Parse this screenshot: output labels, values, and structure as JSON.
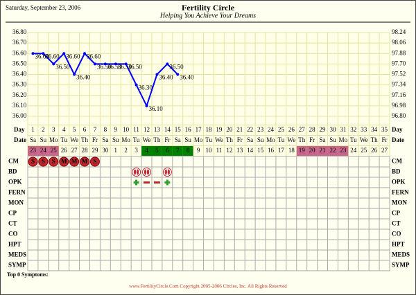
{
  "chart_data": {
    "type": "line",
    "header_date": "Saturday, September 23, 2006",
    "title": "Fertility Circle",
    "subtitle": "Helping You Achieve Your Dreams",
    "ylim": [
      36.0,
      36.8
    ],
    "yticks": [
      {
        "value": 36.8,
        "label": "36.80"
      },
      {
        "value": 36.7,
        "label": "36.70"
      },
      {
        "value": 36.6,
        "label": "36.60"
      },
      {
        "value": 36.5,
        "label": "36.50"
      },
      {
        "value": 36.4,
        "label": "36.40"
      },
      {
        "value": 36.3,
        "label": "36.30"
      },
      {
        "value": 36.2,
        "label": "36.20"
      },
      {
        "value": 36.1,
        "label": "36.10"
      },
      {
        "value": 36.0,
        "label": "36.00"
      }
    ],
    "y2lim": [
      96.8,
      98.24
    ],
    "y2ticks": [
      98.24,
      98.06,
      97.88,
      {
        "value": 97.7,
        "label": "97.70"
      },
      97.52,
      97.34,
      97.16,
      96.98,
      {
        "value": 96.8,
        "label": "96.80"
      }
    ],
    "grid": true,
    "day_label": "Day",
    "date_label": "Date",
    "x": [
      1,
      2,
      3,
      4,
      5,
      6,
      7,
      8,
      9,
      10,
      11,
      12,
      13,
      14,
      15,
      16,
      17,
      18,
      19,
      20,
      21,
      22,
      23,
      24,
      25,
      26,
      27,
      28,
      29,
      30,
      31,
      32,
      33,
      34,
      35
    ],
    "weekdays": [
      "Sa",
      "Su",
      "Mo",
      "Tu",
      "We",
      "Th",
      "Fr",
      "Sa",
      "Su",
      "Mo",
      "Tu",
      "We",
      "Th",
      "Fr",
      "Sa",
      "Su",
      "Mo",
      "Tu",
      "We",
      "Th",
      "Fr",
      "Sa",
      "Su",
      "Mo",
      "Tu",
      "We",
      "Th",
      "Fr",
      "Sa",
      "Su",
      "Mo",
      "Tu",
      "We",
      "Th",
      "Fr"
    ],
    "dates": [
      23,
      24,
      25,
      26,
      27,
      28,
      29,
      30,
      1,
      2,
      3,
      4,
      5,
      6,
      7,
      8,
      9,
      10,
      11,
      12,
      13,
      14,
      15,
      16,
      17,
      18,
      19,
      20,
      21,
      22,
      23,
      24,
      25,
      26,
      27
    ],
    "date_colors": [
      "#c9668c",
      "#c9668c",
      "#c9668c",
      null,
      null,
      null,
      null,
      null,
      null,
      null,
      null,
      "#008000",
      "#008000",
      "#008000",
      "#008000",
      "#008000",
      null,
      null,
      null,
      null,
      null,
      null,
      null,
      null,
      null,
      null,
      "#c9668c",
      "#c9668c",
      "#c9668c",
      "#c9668c",
      "#c9668c",
      null,
      null,
      null,
      null
    ],
    "series": [
      {
        "color": "#0000ff",
        "values": [
          36.6,
          36.6,
          36.5,
          36.6,
          36.4,
          36.6,
          36.5,
          36.5,
          36.5,
          36.5,
          36.3,
          36.1,
          36.4,
          36.5,
          36.4,
          null,
          null,
          null,
          null,
          null,
          null,
          null,
          null,
          null,
          null,
          null,
          null,
          null,
          null,
          null,
          null,
          null,
          null,
          null,
          null
        ],
        "value_labels": [
          "36.60",
          "36.60",
          "36.50",
          "36.60",
          "36.40",
          "36.60",
          "36.50",
          "36.50",
          "36.50",
          "36.50",
          "36.30",
          "36.10",
          "36.40",
          "36.50",
          "36.40",
          null,
          null,
          null,
          null,
          null,
          null,
          null,
          null,
          null,
          null,
          null,
          null,
          null,
          null,
          null,
          null,
          null,
          null,
          null,
          null
        ]
      }
    ],
    "row_labels": [
      "CM",
      "BD",
      "OPK",
      "FERN",
      "MON",
      "CP",
      "CT",
      "CO",
      "HPT",
      "MEDS",
      "SYMP"
    ],
    "cm": [
      "S",
      "S",
      "S",
      "M",
      "M",
      "M",
      "S",
      null,
      null,
      null,
      null,
      null,
      null,
      null,
      null,
      null,
      null,
      null,
      null,
      null,
      null,
      null,
      null,
      null,
      null,
      null,
      null,
      null,
      null,
      null,
      null,
      null,
      null,
      null,
      null
    ],
    "symptoms_label": "Top 0 Symptoms:",
    "copyright": "www.FertilityCircle.Com Copyright 2005-2006 Circles, Inc. All Rights Reserved"
  }
}
